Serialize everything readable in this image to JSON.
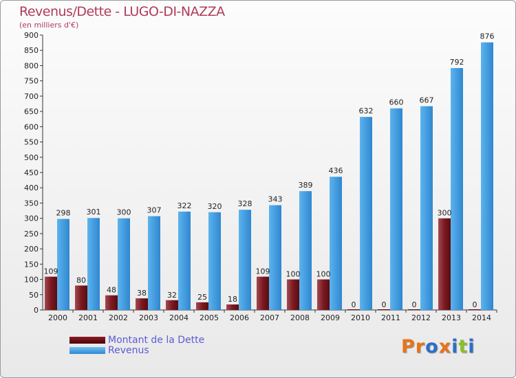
{
  "title": "Revenus/Dette - LUGO-DI-NAZZA",
  "subtitle": "(en milliers d'€)",
  "colors": {
    "dette": "#6b0f14",
    "dette_light": "#a24a52",
    "revenus": "#2f87d0",
    "revenus_light": "#5cb3ee",
    "text": "#b03a5b",
    "legend_text": "#5b5bd6"
  },
  "legend": [
    {
      "label": "Montant de la Dette",
      "color": "#6b0f14"
    },
    {
      "label": "Revenus",
      "color": "#4aa3e6"
    }
  ],
  "logo": {
    "text": "Proxiti",
    "colors": [
      "#e8731a",
      "#e8731a",
      "#2a6fc9",
      "#e8731a",
      "#2a6fc9",
      "#8bbf2a",
      "#2a6fc9"
    ]
  },
  "chart_data": {
    "type": "bar",
    "title": "Revenus/Dette - LUGO-DI-NAZZA",
    "subtitle": "(en milliers d'€)",
    "categories": [
      "2000",
      "2001",
      "2002",
      "2003",
      "2004",
      "2005",
      "2006",
      "2007",
      "2008",
      "2009",
      "2010",
      "2011",
      "2012",
      "2013",
      "2014"
    ],
    "series": [
      {
        "name": "Montant de la Dette",
        "values": [
          109,
          80,
          48,
          38,
          32,
          25,
          18,
          109,
          100,
          100,
          0,
          0,
          0,
          300,
          0
        ]
      },
      {
        "name": "Revenus",
        "values": [
          298,
          301,
          300,
          307,
          322,
          320,
          328,
          343,
          389,
          436,
          632,
          660,
          667,
          792,
          876
        ]
      }
    ],
    "ylim": [
      0,
      900
    ],
    "yticks": [
      0,
      50,
      100,
      150,
      200,
      250,
      300,
      350,
      400,
      450,
      500,
      550,
      600,
      650,
      700,
      750,
      800,
      850,
      900
    ],
    "grid": false,
    "legend_position": "bottom-left"
  }
}
